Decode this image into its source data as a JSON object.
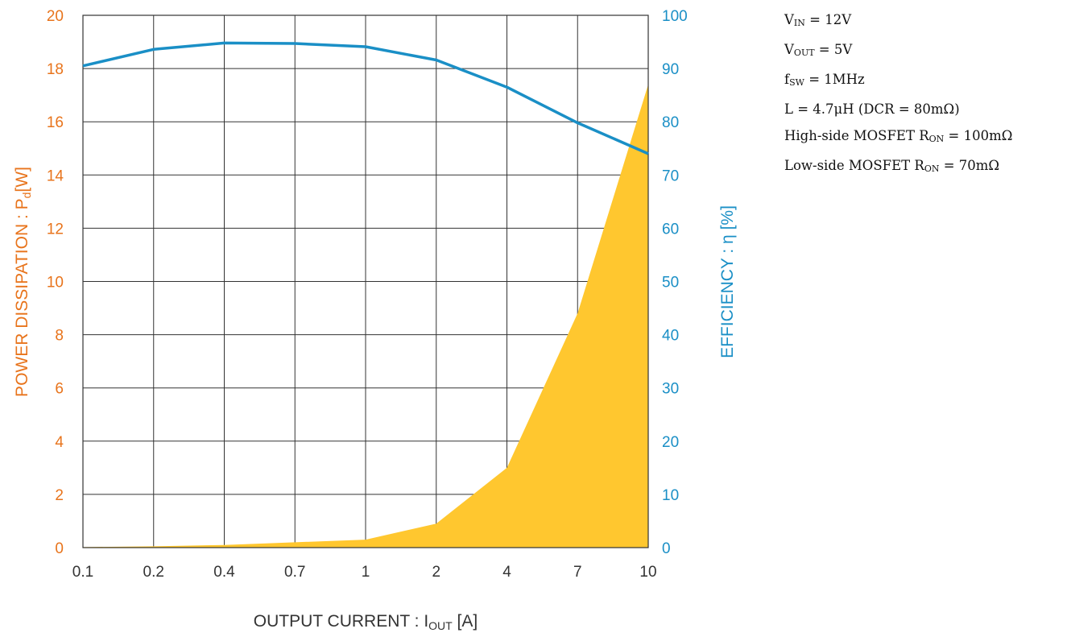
{
  "chart_data": {
    "type": "line",
    "x_scale": "categorical",
    "categories": [
      "0.1",
      "0.2",
      "0.4",
      "0.7",
      "1",
      "2",
      "4",
      "7",
      "10"
    ],
    "series": [
      {
        "axis": "left",
        "style": "area",
        "color": "#ffc72f",
        "values": [
          0.02,
          0.05,
          0.1,
          0.2,
          0.3,
          0.9,
          3.0,
          8.8,
          17.4
        ]
      },
      {
        "axis": "right",
        "style": "line",
        "color": "#1a8fc6",
        "values": [
          90.5,
          93.6,
          94.8,
          94.7,
          94.1,
          91.6,
          86.5,
          79.8,
          74.0
        ]
      }
    ],
    "xlabel": {
      "text": "OUTPUT CURRENT : I",
      "sub": "OUT",
      "tail": " [A]"
    },
    "ylabel_left": {
      "text": "POWER DISSIPATION : P",
      "sub": "d",
      "tail": "[W]",
      "color": "#e8741c"
    },
    "ylabel_right": {
      "text": "EFFICIENCY : η [%]",
      "color": "#1a8fc6"
    },
    "ylim_left": [
      0,
      20
    ],
    "ylim_right": [
      0,
      100
    ],
    "yticks_left": [
      0,
      2,
      4,
      6,
      8,
      10,
      12,
      14,
      16,
      18,
      20
    ],
    "yticks_right": [
      0,
      10,
      20,
      30,
      40,
      50,
      60,
      70,
      80,
      90,
      100
    ],
    "grid": true
  },
  "notes": [
    {
      "pre": "V",
      "sub": "IN",
      "post": " = 12V"
    },
    {
      "pre": "V",
      "sub": "OUT",
      "post": " = 5V"
    },
    {
      "pre": "f",
      "sub": "SW",
      "post": " = 1MHz"
    },
    {
      "pre": "L = 4.7μH (DCR = 80mΩ)",
      "sub": "",
      "post": ""
    },
    {
      "pre": "High-side MOSFET R",
      "sub": "ON",
      "post": " = 100mΩ"
    },
    {
      "pre": "Low-side MOSFET R",
      "sub": "ON",
      "post": " = 70mΩ"
    }
  ]
}
